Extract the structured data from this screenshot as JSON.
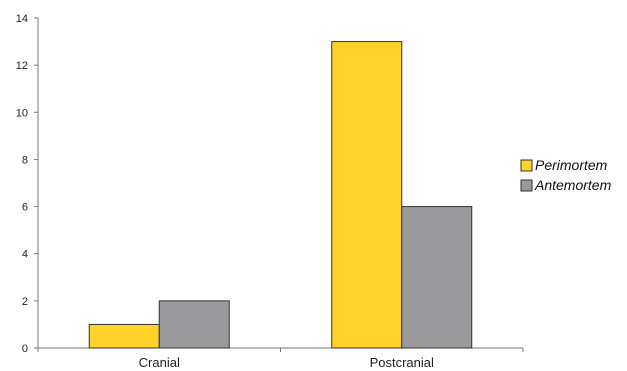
{
  "chart_data": {
    "type": "bar",
    "categories": [
      "Cranial",
      "Postcranial"
    ],
    "series": [
      {
        "name": "Perimortem",
        "values": [
          1,
          13
        ],
        "color": "#FFD22B"
      },
      {
        "name": "Antemortem",
        "values": [
          2,
          6
        ],
        "color": "#9A9A9C"
      }
    ],
    "ylim": [
      0,
      14
    ],
    "yticks": [
      0,
      2,
      4,
      6,
      8,
      10,
      12,
      14
    ],
    "grid": false,
    "legend": "right",
    "title": "",
    "xlabel": "",
    "ylabel": ""
  }
}
